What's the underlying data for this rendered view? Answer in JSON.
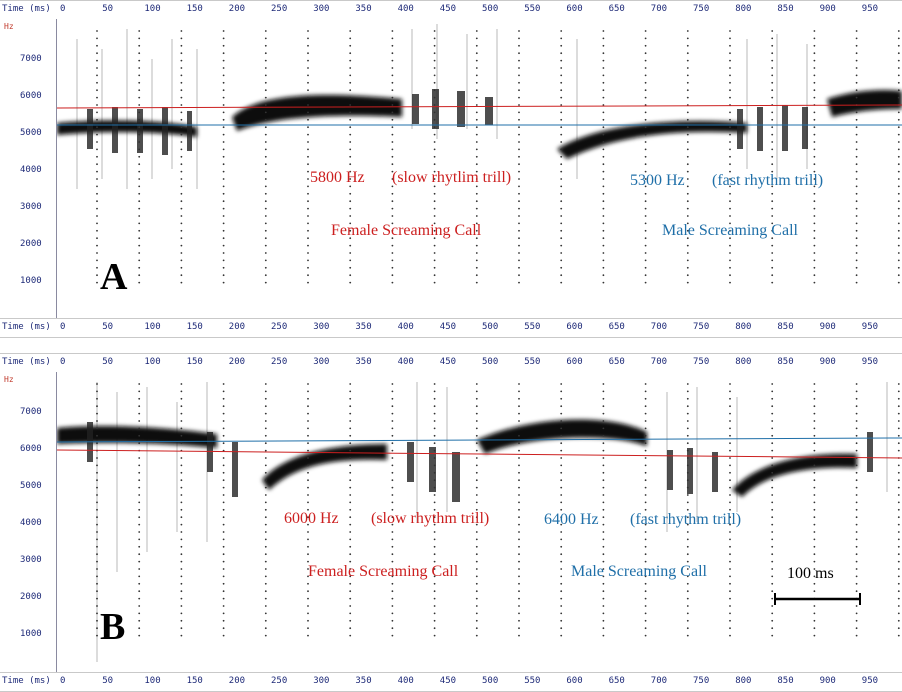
{
  "axis": {
    "time_label": "Time (ms)",
    "time_ticks": [
      "0",
      "50",
      "100",
      "150",
      "200",
      "250",
      "300",
      "350",
      "400",
      "450",
      "500",
      "550",
      "600",
      "650",
      "700",
      "750",
      "800",
      "850",
      "900",
      "950"
    ],
    "freq_unit": "Hz",
    "freq_ticks": [
      "7000",
      "6000",
      "5000",
      "4000",
      "3000",
      "2000",
      "1000"
    ]
  },
  "colors": {
    "female": "#cc1f1f",
    "male": "#1f6fa8",
    "trace": "#111111"
  },
  "panels": [
    {
      "letter": "A",
      "female_freq": "5800 Hz",
      "female_rhythm": "(slow rhytlim trill)",
      "male_freq": "5300 Hz",
      "male_rhythm": "(fast rhythm trill)",
      "female_call": "Female Screaming Call",
      "male_call": "Male Screaming Call"
    },
    {
      "letter": "B",
      "female_freq": "6000 Hz",
      "female_rhythm": "(slow rhythm trill)",
      "male_freq": "6400 Hz",
      "male_rhythm": "(fast rhythm trill)",
      "female_call": "Female Screaming Call",
      "male_call": "Male Screaming Call",
      "scale_bar": "100 ms"
    }
  ]
}
